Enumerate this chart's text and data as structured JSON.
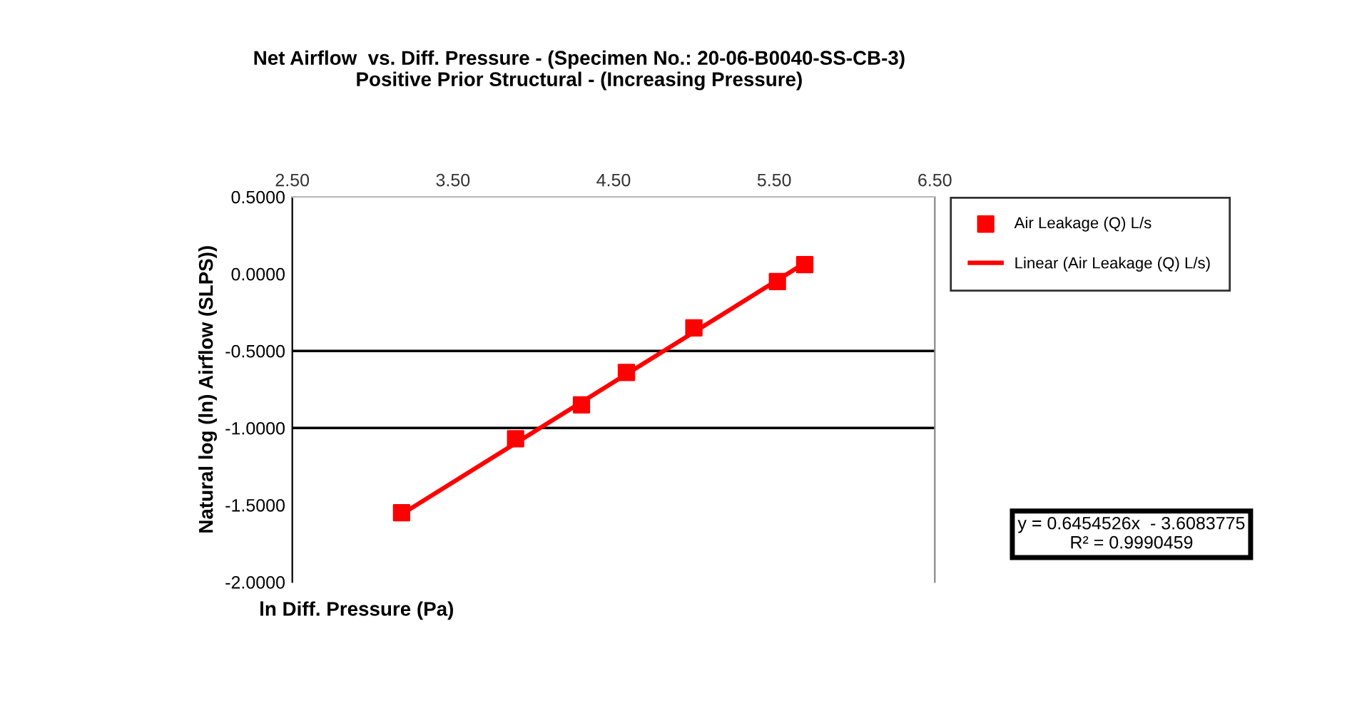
{
  "chart_data": {
    "type": "scatter",
    "title": "Net Airflow  vs. Diff. Pressure - (Specimen No.: 20-06-B0040-SS-CB-3)\nPositive Prior Structural - (Increasing Pressure)",
    "xlabel": "ln Diff. Pressure (Pa)",
    "ylabel": "Natural log (ln) Airflow (SLPS))",
    "x": [
      3.18,
      3.89,
      4.3,
      4.58,
      5.0,
      5.52,
      5.69
    ],
    "series": [
      {
        "name": "Air Leakage (Q) L/s",
        "color": "#ff0000",
        "marker": "square",
        "values": [
          -1.55,
          -1.07,
          -0.85,
          -0.64,
          -0.35,
          -0.05,
          0.06
        ]
      },
      {
        "name": "Linear (Air Leakage (Q) L/s)",
        "type": "line",
        "color": "#ff0000",
        "marker": "none",
        "line_style": "solid",
        "x": [
          3.18,
          5.69
        ],
        "values": [
          -1.56,
          0.07
        ]
      }
    ],
    "xlim": [
      2.5,
      6.5
    ],
    "xticks": [
      {
        "value": 2.5,
        "label": "2.50"
      },
      {
        "value": 3.5,
        "label": "3.50"
      },
      {
        "value": 4.5,
        "label": "4.50"
      },
      {
        "value": 5.5,
        "label": "5.50"
      },
      {
        "value": 6.5,
        "label": "6.50"
      }
    ],
    "ylim": [
      -2.0,
      0.5
    ],
    "yticks": [
      {
        "value": 0.5,
        "label": "0.5000"
      },
      {
        "value": 0.0,
        "label": "0.0000"
      },
      {
        "value": -0.5,
        "label": "-0.5000"
      },
      {
        "value": -1.0,
        "label": "-1.0000"
      },
      {
        "value": -1.5,
        "label": "-1.5000"
      },
      {
        "value": -2.0,
        "label": "-2.0000"
      }
    ],
    "ref_lines": [
      {
        "axis": "y",
        "value": -0.5,
        "color": "#000000"
      },
      {
        "axis": "y",
        "value": -1.0,
        "color": "#000000"
      }
    ],
    "annotations": [
      "y = 0.6454526x  - 3.6083775\nR² = 0.9990459"
    ],
    "legend": "right",
    "grid": false
  }
}
